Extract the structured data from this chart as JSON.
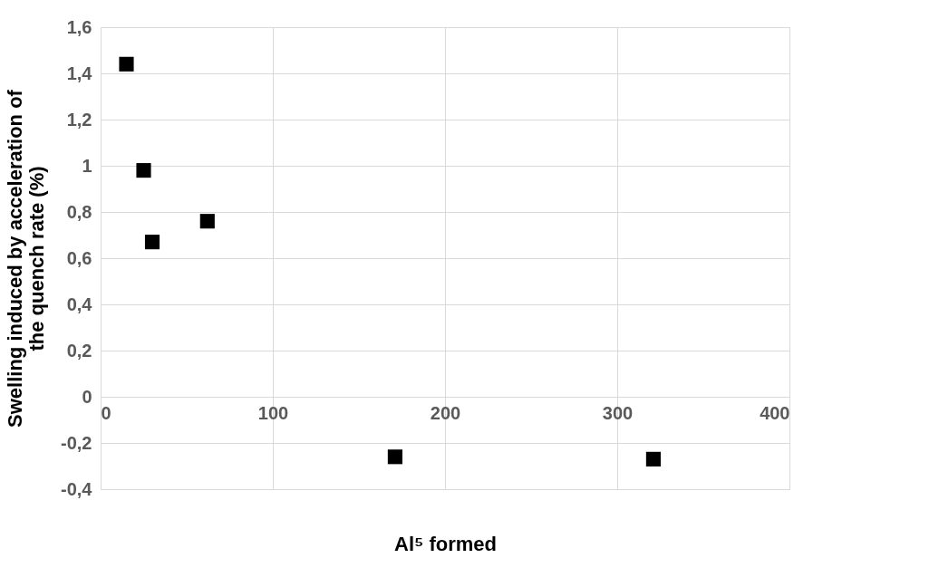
{
  "chart_data": {
    "type": "scatter",
    "xlabel": "Al⁵ formed",
    "ylabel": "Swelling induced by acceleration of the quench rate (%)",
    "x": [
      15,
      25,
      30,
      62,
      171,
      321
    ],
    "values": [
      1.44,
      0.98,
      0.67,
      0.76,
      -0.26,
      -0.27
    ],
    "color": "#000000",
    "marker": "square",
    "xlim": [
      0,
      400
    ],
    "xticks": [
      0,
      100,
      200,
      300,
      400
    ],
    "ylim": [
      -0.4,
      1.6
    ],
    "yticks": [
      {
        "value": -0.4,
        "label": "-0,4"
      },
      {
        "value": -0.2,
        "label": "-0,2"
      },
      {
        "value": 0,
        "label": "0"
      },
      {
        "value": 0.2,
        "label": "0,2"
      },
      {
        "value": 0.4,
        "label": "0,4"
      },
      {
        "value": 0.6,
        "label": "0,6"
      },
      {
        "value": 0.8,
        "label": "0,8"
      },
      {
        "value": 1,
        "label": "1"
      },
      {
        "value": 1.2,
        "label": "1,2"
      },
      {
        "value": 1.4,
        "label": "1,4"
      },
      {
        "value": 1.6,
        "label": "1,6"
      }
    ],
    "grid": true
  }
}
